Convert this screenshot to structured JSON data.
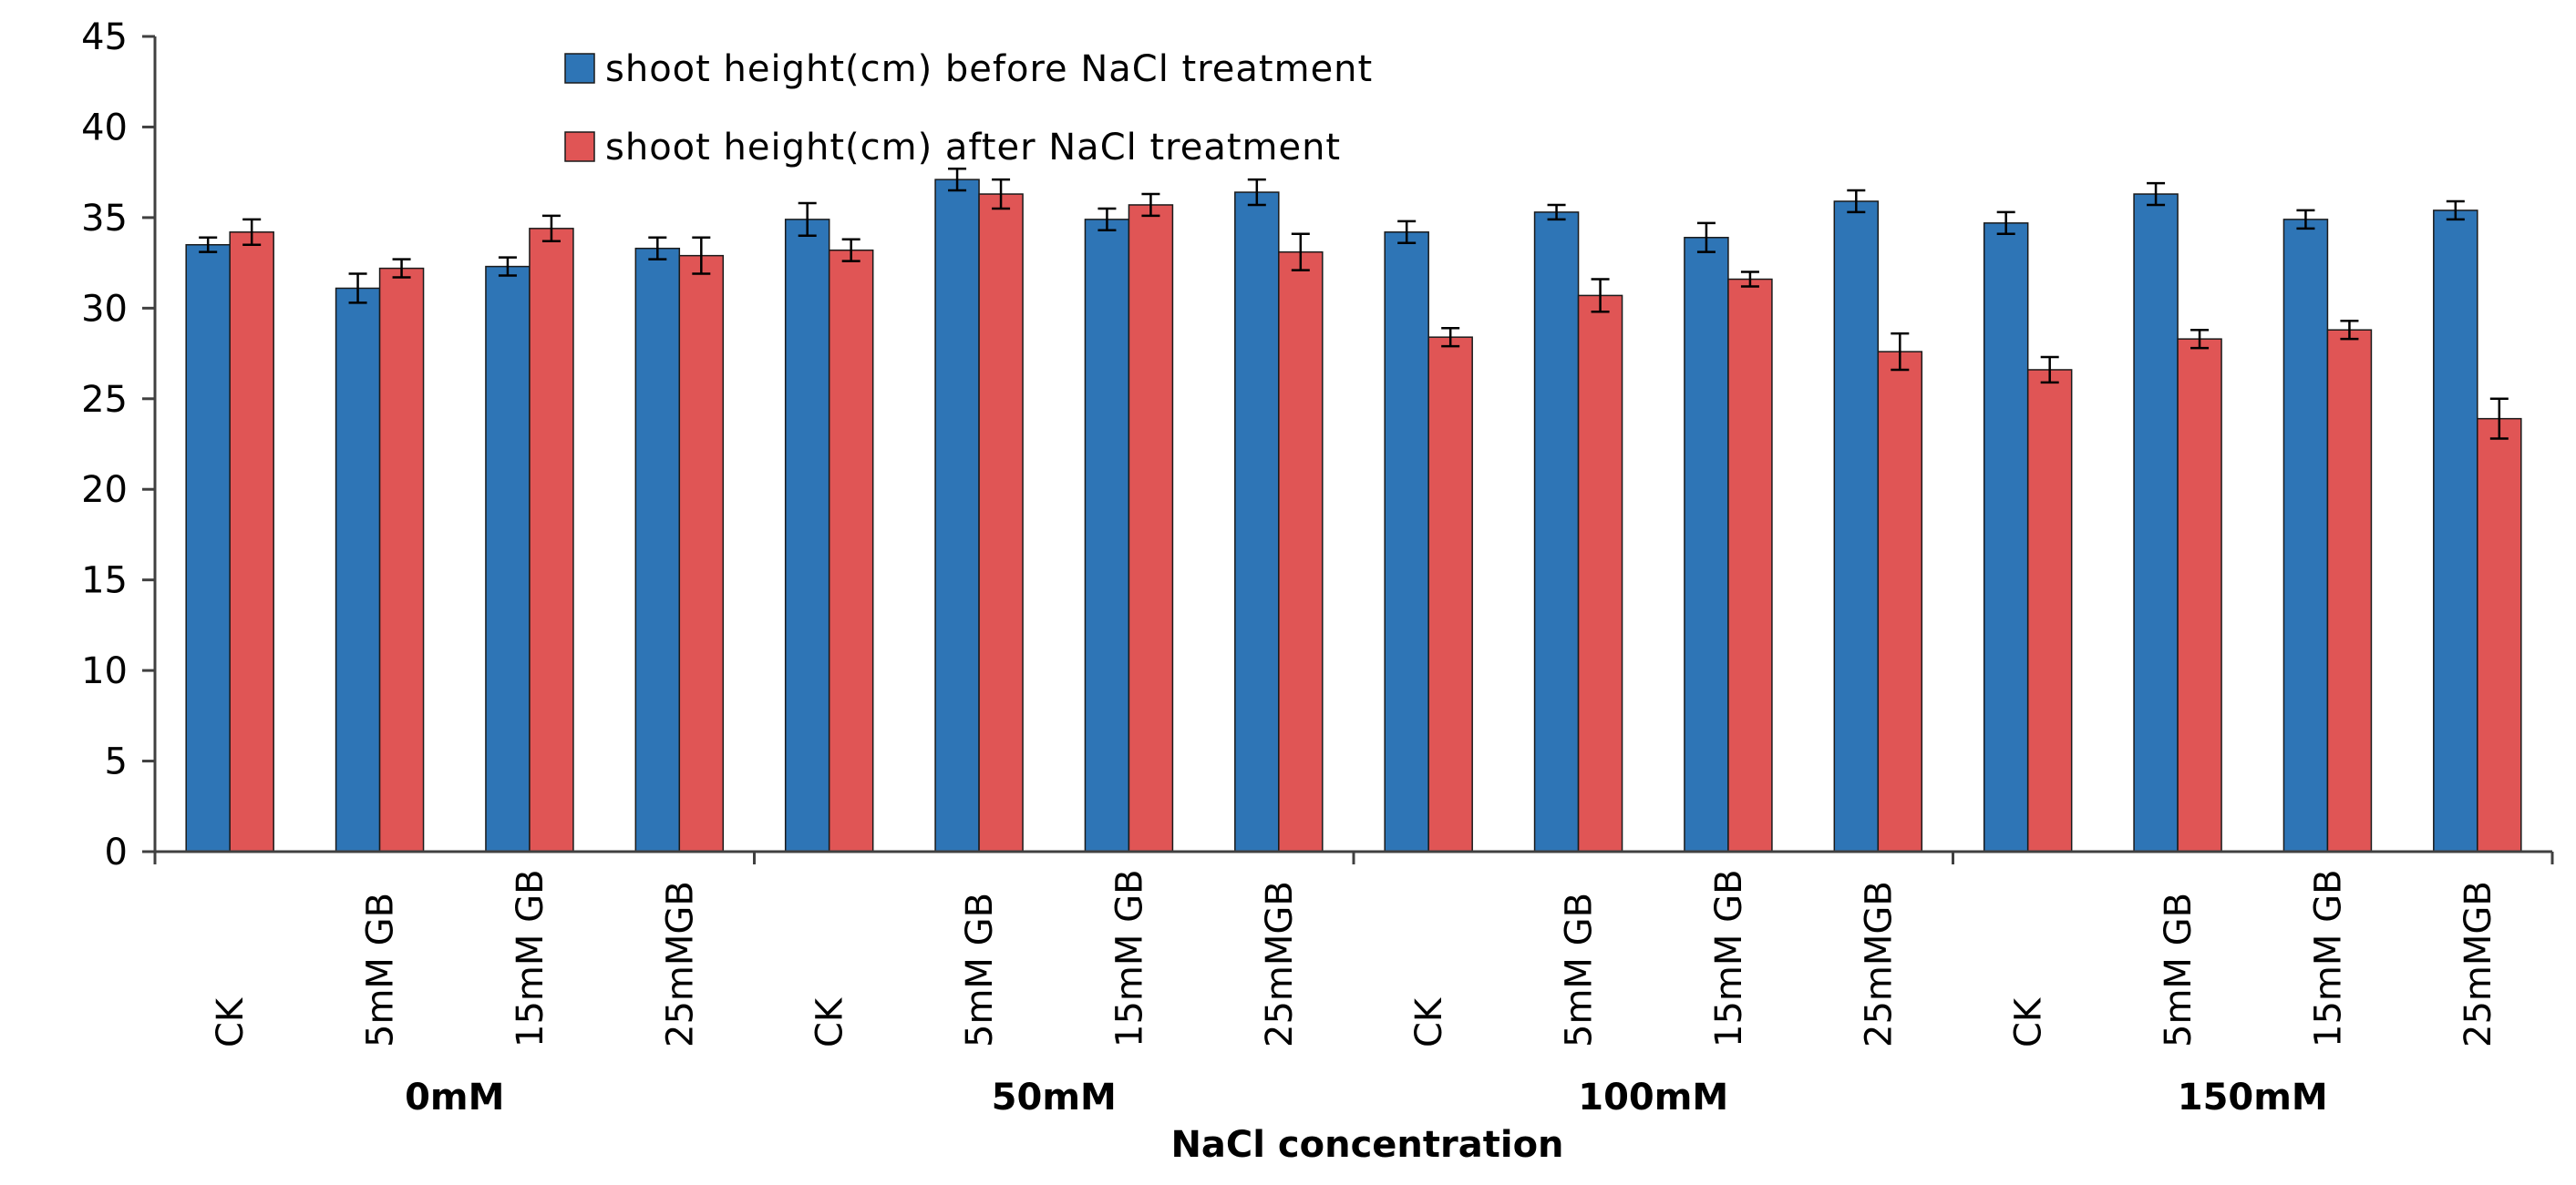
{
  "chart_data": {
    "type": "bar",
    "title": "",
    "xlabel": "NaCl concentration",
    "ylabel": "",
    "ylim": [
      0,
      45
    ],
    "yticks": [
      0,
      5,
      10,
      15,
      20,
      25,
      30,
      35,
      40,
      45
    ],
    "grid": false,
    "legend_position": "top-center",
    "groups": [
      "0mM",
      "50mM",
      "100mM",
      "150mM"
    ],
    "categories": [
      "CK",
      "5mM GB",
      "15mM GB",
      "25mMGB",
      "CK",
      "5mM GB",
      "15mM GB",
      "25mMGB",
      "CK",
      "5mM GB",
      "15mM GB",
      "25mMGB",
      "CK",
      "5mM GB",
      "15mM GB",
      "25mMGB"
    ],
    "series": [
      {
        "name": "shoot height(cm) before NaCl treatment",
        "color": "#2E75B6",
        "values": [
          33.5,
          31.1,
          32.3,
          33.3,
          34.9,
          37.1,
          34.9,
          36.4,
          34.2,
          35.3,
          33.9,
          35.9,
          34.7,
          36.3,
          34.9,
          35.4
        ],
        "errors": [
          0.4,
          0.8,
          0.5,
          0.6,
          0.9,
          0.6,
          0.6,
          0.7,
          0.6,
          0.4,
          0.8,
          0.6,
          0.6,
          0.6,
          0.5,
          0.5
        ]
      },
      {
        "name": "shoot height(cm) after NaCl treatment",
        "color": "#E05555",
        "values": [
          34.2,
          32.2,
          34.4,
          32.9,
          33.2,
          36.3,
          35.7,
          33.1,
          28.4,
          30.7,
          31.6,
          27.6,
          26.6,
          28.3,
          28.8,
          23.9
        ],
        "errors": [
          0.7,
          0.5,
          0.7,
          1.0,
          0.6,
          0.8,
          0.6,
          1.0,
          0.5,
          0.9,
          0.4,
          1.0,
          0.7,
          0.5,
          0.5,
          1.1
        ]
      }
    ]
  }
}
